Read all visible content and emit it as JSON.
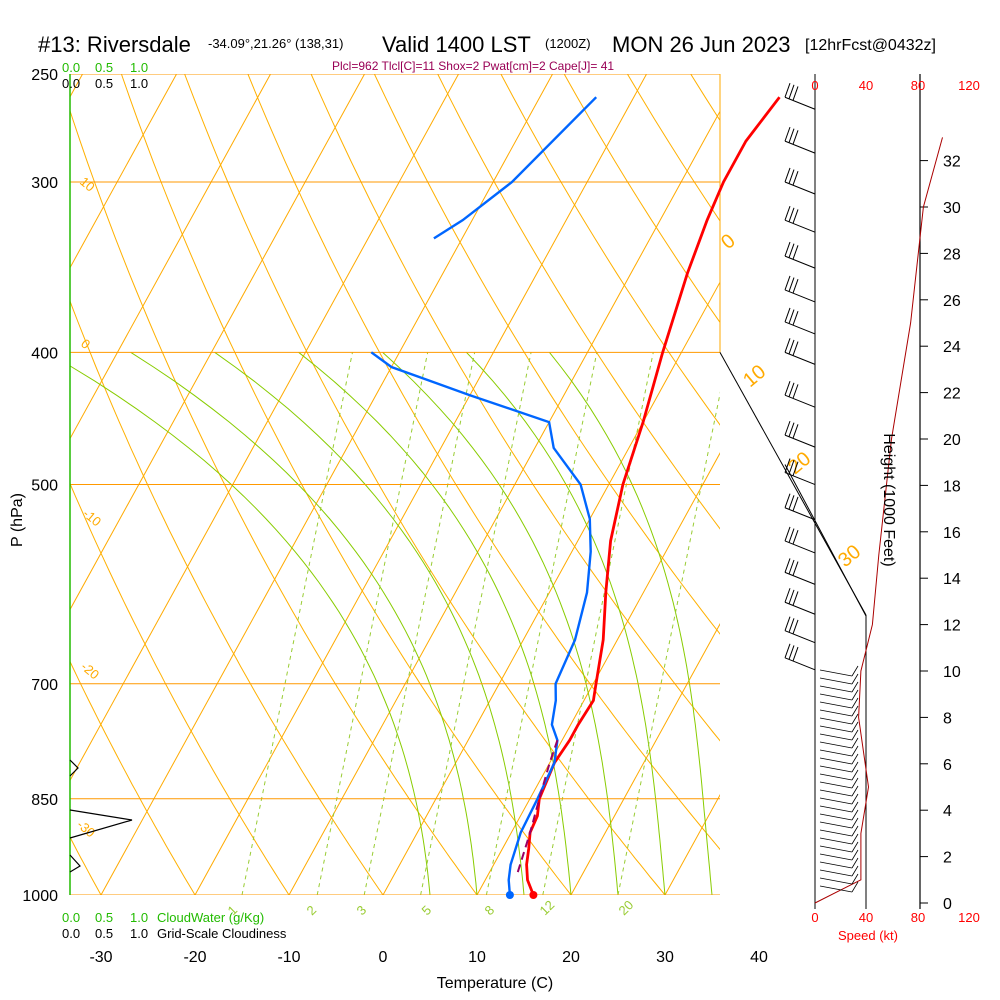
{
  "header": {
    "station": "#13: Riversdale",
    "coords": "-34.09°,21.26° (138,31)",
    "valid_prefix": "Valid 1400 LST",
    "valid_utc": "(1200Z)",
    "date": "MON 26 Jun 2023",
    "fcst": "[12hrFcst@0432z]",
    "params": "Plcl=962 Tlcl[C]=11 Shox=2 Pwat[cm]=2 Cape[J]= 41"
  },
  "labels": {
    "p_axis": "P (hPa)",
    "t_axis": "Temperature (C)",
    "height_axis": "Height (1000 Feet)",
    "speed_axis": "Speed (kt)",
    "cloudwater": "CloudWater (g/Kg)",
    "cloudiness": "Grid-Scale Cloudiness",
    "scale_0": "0.0",
    "scale_05": "0.5",
    "scale_1": "1.0"
  },
  "colors": {
    "isobar": "#ff9900",
    "isotherm": "#ffaa00",
    "dry_adiabat": "#ffb000",
    "moist_adiabat": "#88cc00",
    "mixing_ratio": "#99cc33",
    "temperature": "#ff0000",
    "dewpoint": "#0066ff",
    "parcel": "#990066"
  },
  "chart_data": {
    "type": "line",
    "title": "#13: Riversdale Valid 1400 LST (1200Z) MON 26 Jun 2023 [12hrFcst@0432z]",
    "xlabel": "Temperature (C)",
    "ylabel": "P (hPa)",
    "x_ticks": [
      -30,
      -20,
      -10,
      0,
      10,
      20,
      30,
      40
    ],
    "p_ticks": [
      250,
      300,
      400,
      500,
      700,
      850,
      1000
    ],
    "height_ticks": [
      0,
      2,
      4,
      6,
      8,
      10,
      12,
      14,
      16,
      18,
      20,
      22,
      24,
      26,
      28,
      30,
      32
    ],
    "speed_ticks": [
      0,
      40,
      80,
      120
    ],
    "dry_adiabat_labels": [
      "0",
      "10",
      "20",
      "30"
    ],
    "isotherm_labels": [
      "10",
      "0",
      "-10",
      "-20",
      "-30"
    ],
    "mixing_ratio_labels": [
      "1",
      "2",
      "3",
      "5",
      "8",
      "12",
      "20"
    ],
    "series": [
      {
        "name": "Temperature",
        "points": [
          [
            1000,
            16.0
          ],
          [
            975,
            14.5
          ],
          [
            950,
            13.5
          ],
          [
            925,
            12.8
          ],
          [
            900,
            12.0
          ],
          [
            875,
            11.8
          ],
          [
            850,
            11.0
          ],
          [
            800,
            10.5
          ],
          [
            770,
            10.8
          ],
          [
            750,
            10.8
          ],
          [
            720,
            11.0
          ],
          [
            700,
            10.3
          ],
          [
            650,
            8.5
          ],
          [
            600,
            6.0
          ],
          [
            550,
            3.5
          ],
          [
            500,
            1.5
          ],
          [
            450,
            0.0
          ],
          [
            400,
            -2.0
          ],
          [
            350,
            -4.0
          ],
          [
            320,
            -5.0
          ],
          [
            300,
            -5.5
          ],
          [
            280,
            -5.5
          ],
          [
            260,
            -4.5
          ]
        ]
      },
      {
        "name": "Dewpoint",
        "points": [
          [
            1000,
            13.5
          ],
          [
            975,
            12.5
          ],
          [
            950,
            11.8
          ],
          [
            900,
            11.0
          ],
          [
            850,
            10.8
          ],
          [
            800,
            10.5
          ],
          [
            770,
            9.5
          ],
          [
            750,
            8.0
          ],
          [
            720,
            7.0
          ],
          [
            700,
            6.0
          ],
          [
            650,
            5.5
          ],
          [
            600,
            4.0
          ],
          [
            560,
            2.0
          ],
          [
            530,
            0.0
          ],
          [
            500,
            -3.0
          ],
          [
            470,
            -8.0
          ],
          [
            450,
            -10.0
          ],
          [
            430,
            -20.0
          ],
          [
            410,
            -30.0
          ],
          [
            400,
            -33.0
          ]
        ]
      },
      {
        "name": "Parcel",
        "points": [
          [
            962,
            13.0
          ],
          [
            900,
            12.0
          ],
          [
            850,
            11.0
          ],
          [
            800,
            10.0
          ],
          [
            770,
            9.5
          ]
        ]
      },
      {
        "name": "Dewpoint (upper)",
        "points": [
          [
            330,
            -33.0
          ],
          [
            320,
            -31.0
          ],
          [
            300,
            -28.0
          ],
          [
            260,
            -24.0
          ]
        ]
      }
    ],
    "height_profile_kft": [
      [
        0,
        0
      ],
      [
        1,
        40
      ],
      [
        3,
        40
      ],
      [
        5,
        42
      ],
      [
        8,
        38
      ],
      [
        10,
        40
      ],
      [
        12,
        45
      ],
      [
        15,
        50
      ],
      [
        20,
        60
      ],
      [
        25,
        75
      ],
      [
        30,
        85
      ],
      [
        33,
        100
      ]
    ],
    "grid": true,
    "legend": "none"
  }
}
